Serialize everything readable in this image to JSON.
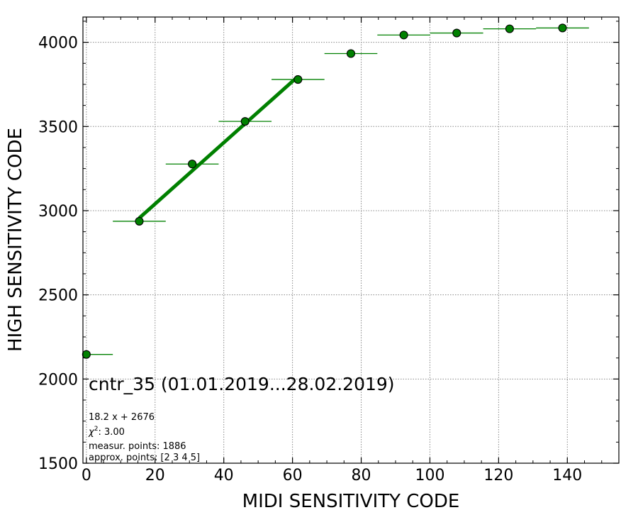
{
  "chart_data": {
    "type": "scatter",
    "xlabel": "MIDI SENSITIVITY CODE",
    "ylabel": "HIGH SENSITIVITY CODE",
    "xlim": [
      -1,
      155
    ],
    "ylim": [
      1500,
      4150
    ],
    "x_ticks": [
      0,
      20,
      40,
      60,
      80,
      100,
      120,
      140
    ],
    "y_ticks": [
      1500,
      2000,
      2500,
      3000,
      3500,
      4000
    ],
    "x_tick_labels": [
      "0",
      "20",
      "40",
      "60",
      "80",
      "100",
      "120",
      "140"
    ],
    "y_tick_labels": [
      "1500",
      "2000",
      "2500",
      "3000",
      "3500",
      "4000"
    ],
    "grid": true,
    "points": [
      {
        "x": 0,
        "y": 2146,
        "xerr": 7.7
      },
      {
        "x": 15.4,
        "y": 2937,
        "xerr": 7.7
      },
      {
        "x": 30.8,
        "y": 3277,
        "xerr": 7.7
      },
      {
        "x": 46.2,
        "y": 3530,
        "xerr": 7.7
      },
      {
        "x": 61.6,
        "y": 3779,
        "xerr": 7.7
      },
      {
        "x": 77.0,
        "y": 3933,
        "xerr": 7.7
      },
      {
        "x": 92.4,
        "y": 4043,
        "xerr": 7.7
      },
      {
        "x": 107.8,
        "y": 4055,
        "xerr": 7.7
      },
      {
        "x": 123.2,
        "y": 4080,
        "xerr": 7.7
      },
      {
        "x": 138.6,
        "y": 4085,
        "xerr": 7.7
      }
    ],
    "fit_line": {
      "x_start": 15.4,
      "x_end": 61.6,
      "slope": 18.2,
      "intercept": 2676
    },
    "colors": {
      "marker_fill": "#008000",
      "marker_edge": "#000000",
      "error_bar": "#008000",
      "fit_line": "#008000",
      "grid": "#888888"
    },
    "annotations": {
      "title": "cntr_35 (01.01.2019...28.02.2019)",
      "fit_equation": "18.2 x + 2676",
      "chi2_label": "χ",
      "chi2_sup": "2",
      "chi2_value": ": 3.00",
      "measured_points": "measur. points: 1886",
      "approx_points": "approx. points: [2 3 4 5]"
    }
  }
}
